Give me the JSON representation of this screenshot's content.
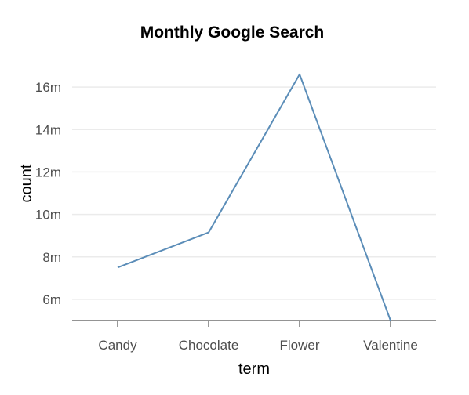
{
  "chart_data": {
    "type": "line",
    "title": "Monthly Google Search",
    "xlabel": "term",
    "ylabel": "count",
    "categories": [
      "Candy",
      "Chocolate",
      "Flower",
      "Valentine"
    ],
    "series": [
      {
        "values": [
          7500000,
          9150000,
          16600000,
          5000000
        ]
      }
    ],
    "ylim": [
      5000000,
      17000000
    ],
    "yticks": [
      6000000,
      8000000,
      10000000,
      12000000,
      14000000,
      16000000
    ],
    "ytick_labels": [
      "6m",
      "8m",
      "10m",
      "12m",
      "14m",
      "16m"
    ],
    "grid": true,
    "line_color": "#5b8db8"
  }
}
